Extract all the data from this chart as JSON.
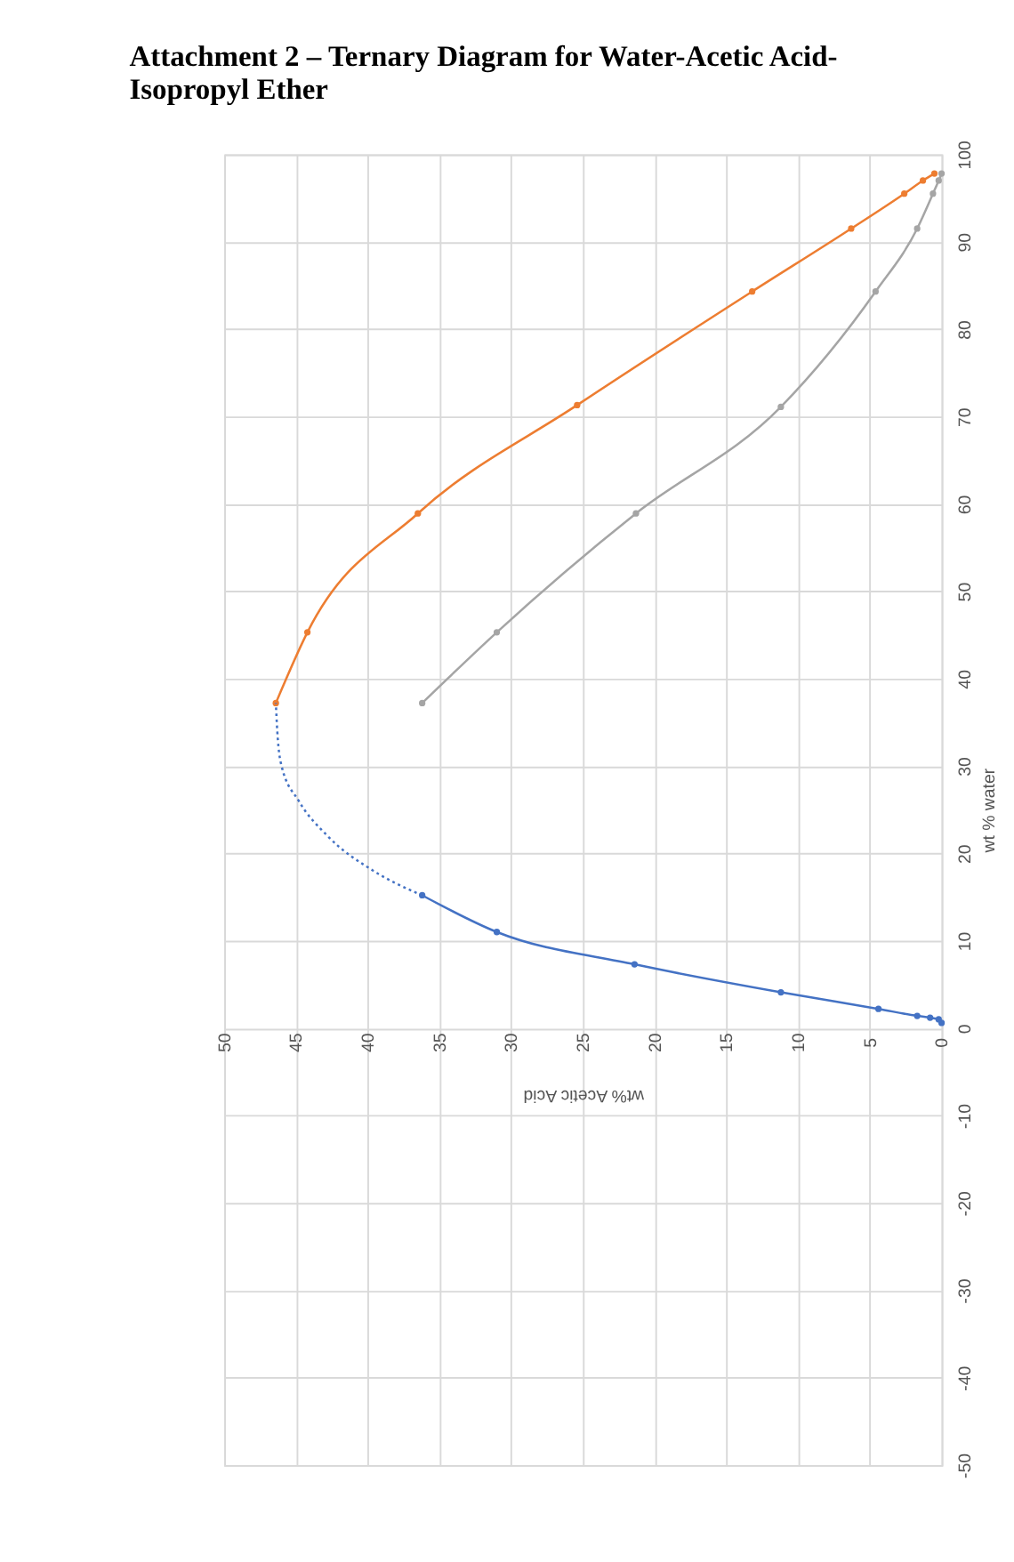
{
  "chart_data": {
    "type": "line",
    "title": "Attachment 2 – Ternary Diagram for Water-Acetic Acid-Isopropyl Ether",
    "xlabel": "wt% Acetic Acid",
    "ylabel": "wt % water",
    "xlim": [
      50,
      0
    ],
    "xticks": [
      50,
      45,
      40,
      35,
      30,
      25,
      20,
      15,
      10,
      5,
      0
    ],
    "ylim": [
      -50,
      100
    ],
    "yticks": [
      -50,
      -40,
      -30,
      -20,
      -10,
      0,
      10,
      20,
      30,
      40,
      50,
      60,
      70,
      80,
      90,
      100
    ],
    "grid": true,
    "legend": false,
    "marker": "circle",
    "line_style": "solid",
    "series": [
      {
        "color": "#4472c4",
        "x": [
          0,
          0.2,
          0.8,
          1.7,
          4.4,
          11.2,
          21.4,
          31,
          36.2
        ],
        "values": [
          0.6,
          1.0,
          1.2,
          1.4,
          2.2,
          4.1,
          7.3,
          11,
          15.2
        ]
      },
      {
        "color": "#ed7d31",
        "x": [
          46.4,
          44.2,
          36.5,
          25.4,
          13.2,
          6.3,
          2.6,
          1.3,
          0.5
        ],
        "values": [
          37.2,
          45.3,
          58.9,
          71.3,
          84.3,
          91.5,
          95.5,
          97,
          97.8
        ]
      },
      {
        "color": "#a5a5a5",
        "x": [
          36.2,
          31,
          21.3,
          11.2,
          4.6,
          1.7,
          0.6,
          0.2,
          0
        ],
        "values": [
          37.2,
          45.3,
          58.9,
          71.1,
          84.3,
          91.5,
          95.5,
          97,
          97.8
        ]
      },
      {
        "type": "line",
        "color": "#4472c4",
        "marker": "none",
        "line_style": "dotted",
        "x": [
          36.2,
          39.6,
          42.8,
          44.8,
          46,
          46.3,
          46.4
        ],
        "values": [
          15.2,
          18,
          22,
          26,
          30,
          34,
          37.2
        ]
      }
    ]
  }
}
